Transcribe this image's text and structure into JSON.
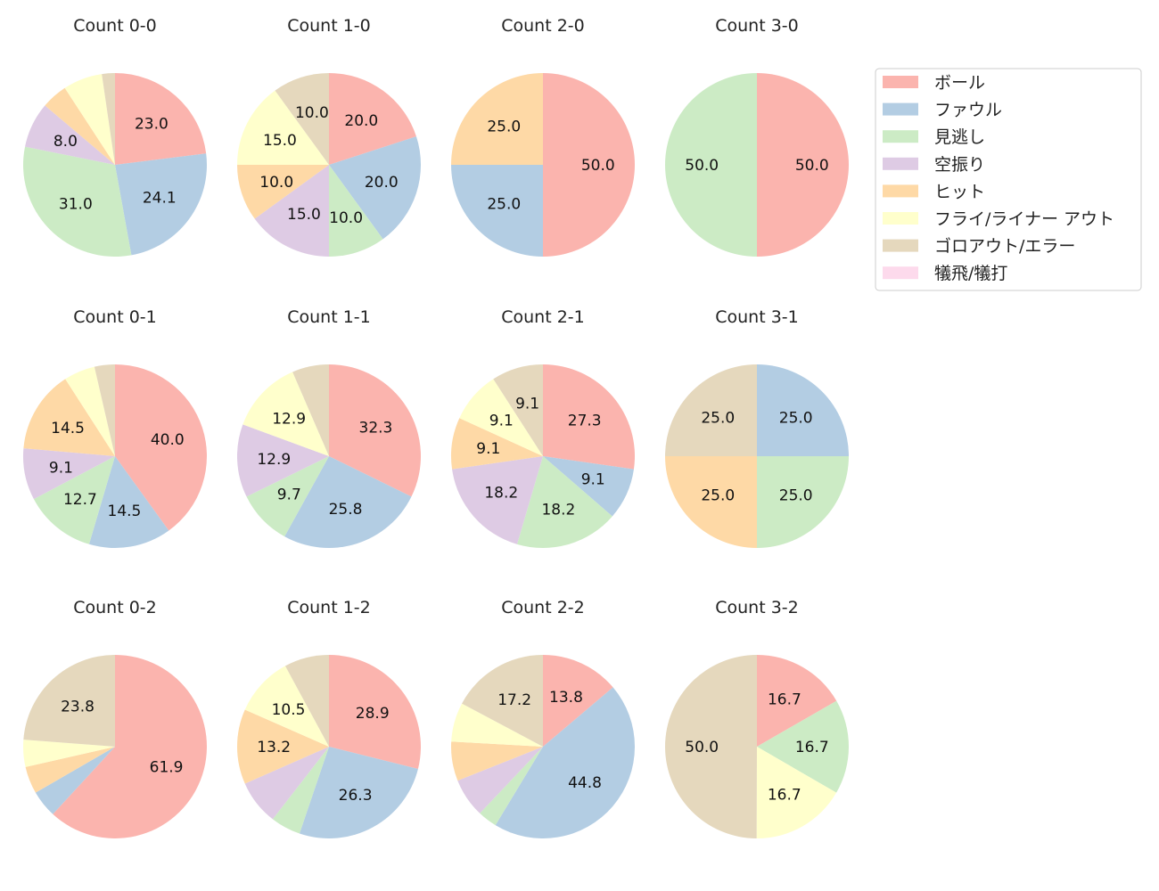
{
  "chart_data": {
    "type": "pie",
    "start_angle": 90,
    "direction": "clockwise",
    "label_threshold_percent": 8,
    "legend": {
      "placement": "top-right",
      "entries": [
        "ボール",
        "ファウル",
        "見逃し",
        "空振り",
        "ヒット",
        "フライ/ライナー アウト",
        "ゴロアウト/エラー",
        "犠飛/犠打"
      ]
    },
    "colors": [
      "#fbb4ae",
      "#b3cde3",
      "#ccebc5",
      "#decbe4",
      "#fed9a6",
      "#ffffcc",
      "#e5d8bd",
      "#fddaec"
    ],
    "charts": [
      {
        "title": "Count 0-0",
        "values": [
          23.0,
          24.1,
          31.0,
          8.0,
          4.6,
          6.9,
          2.3,
          0
        ]
      },
      {
        "title": "Count 1-0",
        "values": [
          20.0,
          20.0,
          10.0,
          15.0,
          10.0,
          15.0,
          10.0,
          0
        ]
      },
      {
        "title": "Count 2-0",
        "values": [
          50.0,
          25.0,
          0,
          0,
          25.0,
          0,
          0,
          0
        ]
      },
      {
        "title": "Count 3-0",
        "values": [
          50.0,
          0,
          50.0,
          0,
          0,
          0,
          0,
          0
        ]
      },
      {
        "title": "Count 0-1",
        "values": [
          40.0,
          14.5,
          12.7,
          9.1,
          14.5,
          5.5,
          3.6,
          0
        ]
      },
      {
        "title": "Count 1-1",
        "values": [
          32.3,
          25.8,
          9.7,
          12.9,
          0,
          12.9,
          6.5,
          0
        ]
      },
      {
        "title": "Count 2-1",
        "values": [
          27.3,
          9.1,
          18.2,
          18.2,
          9.1,
          9.1,
          9.1,
          0
        ]
      },
      {
        "title": "Count 3-1",
        "values": [
          0,
          25.0,
          25.0,
          0,
          25.0,
          0,
          25.0,
          0
        ]
      },
      {
        "title": "Count 0-2",
        "values": [
          61.9,
          4.8,
          0,
          0,
          4.8,
          4.8,
          23.8,
          0
        ]
      },
      {
        "title": "Count 1-2",
        "values": [
          28.9,
          26.3,
          5.3,
          7.9,
          13.2,
          10.5,
          7.9,
          0
        ]
      },
      {
        "title": "Count 2-2",
        "values": [
          13.8,
          44.8,
          3.4,
          6.9,
          6.9,
          6.9,
          17.2,
          0
        ]
      },
      {
        "title": "Count 3-2",
        "values": [
          16.7,
          0,
          16.7,
          0,
          0,
          16.7,
          50.0,
          0
        ]
      }
    ]
  }
}
